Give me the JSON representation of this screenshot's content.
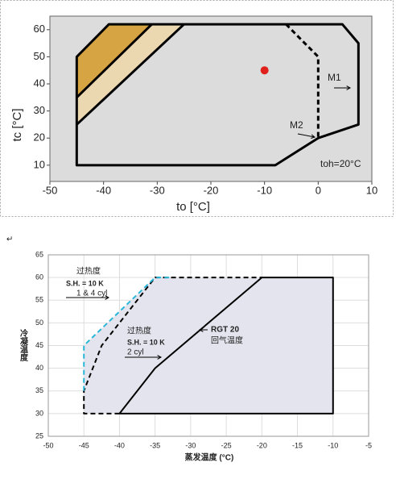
{
  "paragraph_mark": "↵",
  "chart_data": [
    {
      "type": "line",
      "x_label": "to [°C]",
      "y_label": "tc [°C]",
      "xlim": [
        -50,
        10
      ],
      "ylim": [
        4,
        65
      ],
      "xticks": [
        -50,
        -40,
        -30,
        -20,
        -10,
        0,
        10
      ],
      "yticks": [
        10,
        20,
        30,
        40,
        50,
        60
      ],
      "background": "#dcdcdc",
      "grid": false,
      "series": [
        {
          "fill": "#d7a444",
          "x": [
            -45,
            -45,
            -39,
            -31
          ],
          "values": [
            35,
            50,
            62,
            62
          ]
        },
        {
          "fill": "#ecd8b0",
          "x": [
            -45,
            -45,
            -31,
            -25
          ],
          "values": [
            25,
            35,
            62,
            62
          ]
        },
        {
          "color": "#000000",
          "style": "solid",
          "x": [
            -45,
            -31
          ],
          "values": [
            35,
            62
          ]
        },
        {
          "color": "#000000",
          "style": "solid",
          "x": [
            -45,
            -25
          ],
          "values": [
            25,
            62
          ]
        },
        {
          "color": "#000000",
          "style": "solid",
          "x": [
            -6,
            4.5,
            7.5,
            7.5,
            0,
            -8,
            -45,
            -45,
            -39,
            -6
          ],
          "values": [
            62,
            62,
            55,
            25,
            20,
            10,
            10,
            50,
            62,
            62
          ]
        },
        {
          "color": "#000000",
          "style": "dashed",
          "x": [
            -6,
            0,
            0
          ],
          "values": [
            62,
            50,
            20
          ]
        }
      ],
      "points": [
        {
          "x": -10,
          "y": 45,
          "color": "#e0201b"
        }
      ],
      "annotations": [
        "M1",
        "M2",
        "toh=20°C"
      ]
    },
    {
      "type": "line",
      "x_label": "蒸发温度 (°C)",
      "y_label": "冷凝温度",
      "xlim": [
        -50,
        -5
      ],
      "ylim": [
        25,
        65
      ],
      "xticks": [
        -50,
        -45,
        -40,
        -35,
        -30,
        -25,
        -20,
        -15,
        -10,
        -5
      ],
      "yticks": [
        25,
        30,
        35,
        40,
        45,
        50,
        55,
        60,
        65
      ],
      "background": "#ffffff",
      "grid": true,
      "series": [
        {
          "fill": "#e4e4ee",
          "x": [
            -45,
            -45,
            -35,
            -10,
            -10
          ],
          "values": [
            30,
            45,
            60,
            60,
            30
          ]
        },
        {
          "color": "#000000",
          "style": "solid",
          "x": [
            -40,
            -35,
            -20,
            -10,
            -10,
            -40
          ],
          "values": [
            30,
            40,
            60,
            60,
            30,
            30
          ]
        },
        {
          "color": "#000000",
          "style": "dashed",
          "x": [
            -40,
            -45,
            -45,
            -42.5,
            -40,
            -35,
            -20
          ],
          "values": [
            30,
            30,
            35,
            45,
            50,
            60,
            60
          ]
        },
        {
          "color": "#29b6d8",
          "style": "dashed",
          "x": [
            -45,
            -45,
            -35,
            -33
          ],
          "values": [
            35,
            45,
            60,
            60
          ]
        }
      ],
      "annotations": [
        "过热度",
        "S.H. = 10 K",
        "1 & 4 cyl",
        "过热度",
        "S.H. = 10 K",
        "2 cyl",
        "RGT 20",
        "回气温度"
      ]
    }
  ]
}
